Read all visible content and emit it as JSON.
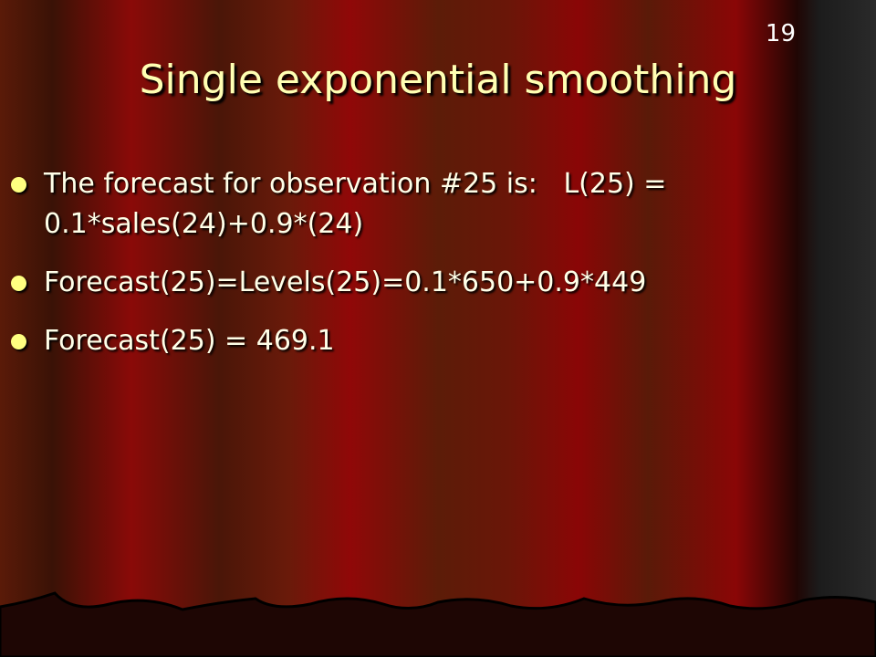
{
  "slide_number": "19",
  "title": "Single exponential smoothing",
  "bullets": [
    "The forecast for observation #25 is:   L(25) = 0.1*sales(24)+0.9*(24)",
    "Forecast(25)=Levels(25)=0.1*650+0.9*449",
    "Forecast(25) = 469.1"
  ]
}
